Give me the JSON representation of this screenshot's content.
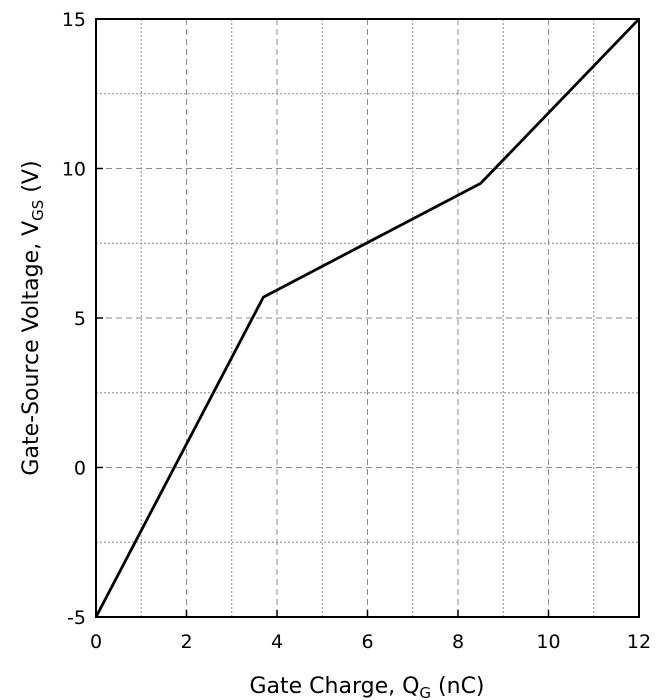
{
  "chart_data": {
    "type": "line",
    "title": "",
    "xlabel": {
      "main": "Gate Charge, Q",
      "sub": "G",
      "unit": " (nC)"
    },
    "ylabel": {
      "main": "Gate-Source Voltage, V",
      "sub": "GS",
      "unit": " (V)"
    },
    "xlim": [
      0,
      12
    ],
    "ylim": [
      -5,
      15
    ],
    "x_ticks": [
      "0",
      "2",
      "4",
      "6",
      "8",
      "10",
      "12"
    ],
    "y_ticks": [
      "-5",
      "0",
      "5",
      "10",
      "15"
    ],
    "grid": true,
    "series": [
      {
        "x": [
          0,
          3.7,
          8.5,
          12
        ],
        "y": [
          -5,
          5.7,
          9.5,
          15
        ]
      }
    ],
    "colors": {
      "line": "#000000",
      "grid": "#8c8c8c",
      "axis": "#000000"
    }
  }
}
